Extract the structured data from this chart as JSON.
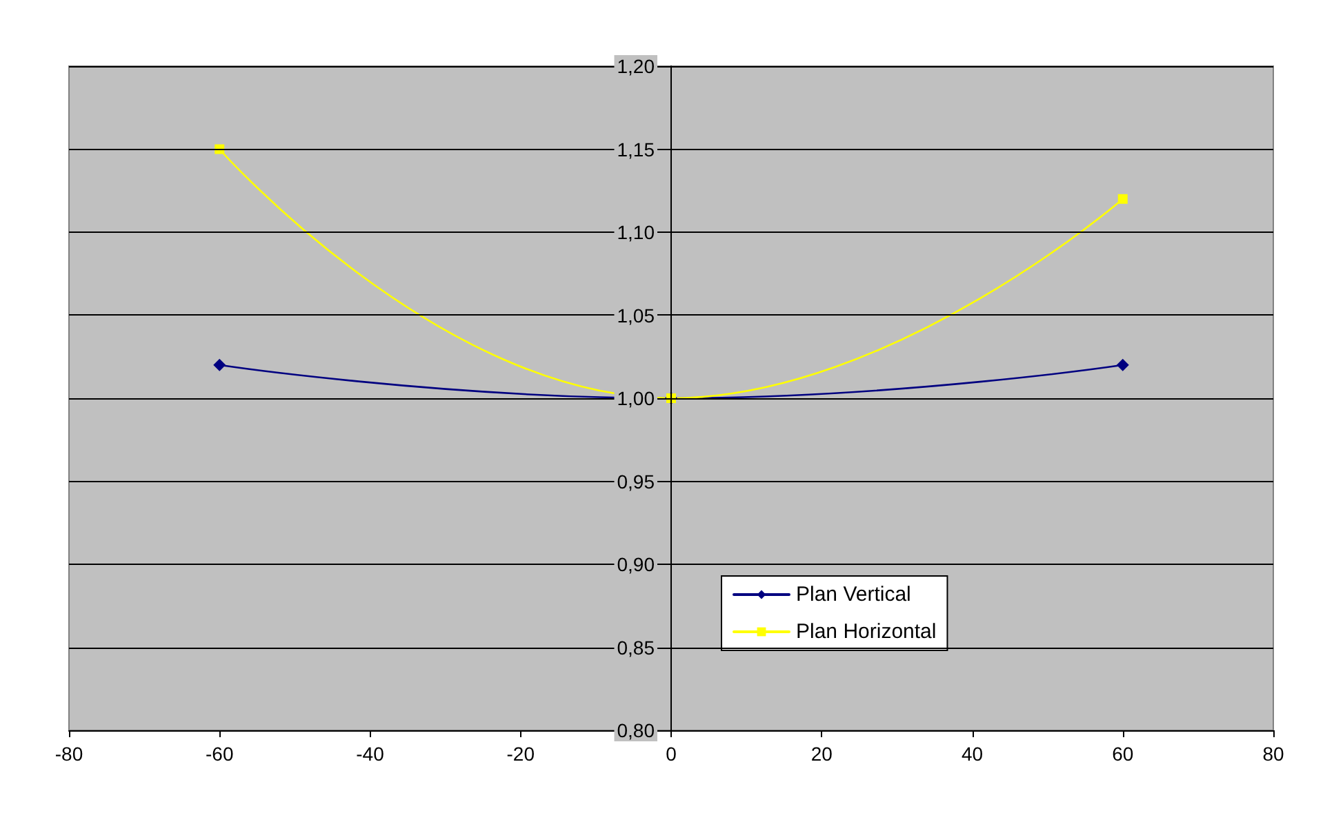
{
  "chart_data": {
    "type": "line",
    "series": [
      {
        "name": "Plan Vertical",
        "color": "#000080",
        "marker": "diamond",
        "x": [
          -60,
          0,
          60
        ],
        "values": [
          1.02,
          1.0,
          1.02
        ]
      },
      {
        "name": "Plan Horizontal",
        "color": "#ffff00",
        "marker": "square",
        "x": [
          -60,
          0,
          60
        ],
        "values": [
          1.15,
          1.0,
          1.12
        ]
      }
    ],
    "xlim": [
      -80,
      80
    ],
    "xticks": [
      -80,
      -60,
      -40,
      -20,
      0,
      20,
      40,
      60,
      80
    ],
    "ylim": [
      0.8,
      1.2
    ],
    "yticks": [
      {
        "value": 0.8,
        "label": "0,80"
      },
      {
        "value": 0.85,
        "label": "0,85"
      },
      {
        "value": 0.9,
        "label": "0,90"
      },
      {
        "value": 0.95,
        "label": "0,95"
      },
      {
        "value": 1.0,
        "label": "1,00"
      },
      {
        "value": 1.05,
        "label": "1,05"
      },
      {
        "value": 1.1,
        "label": "1,10"
      },
      {
        "value": 1.15,
        "label": "1,15"
      },
      {
        "value": 1.2,
        "label": "1,20"
      }
    ],
    "grid": "y",
    "legend": "bottom right",
    "line_style": "solid"
  }
}
